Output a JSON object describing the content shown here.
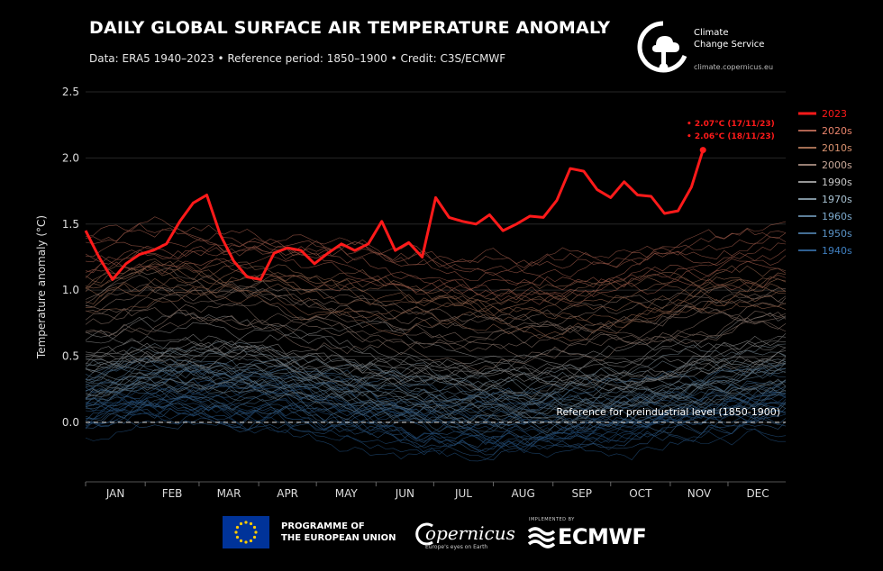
{
  "header": {
    "title": "DAILY GLOBAL SURFACE AIR TEMPERATURE ANOMALY",
    "subtitle": "Data: ERA5 1940–2023 • Reference period: 1850–1900 • Credit: C3S/ECMWF"
  },
  "logos": {
    "c3s_name": "Climate\nChange Service",
    "c3s_url": "climate.copernicus.eu",
    "eu_text": "PROGRAMME OF\nTHE EUROPEAN UNION",
    "copernicus": "opernicus",
    "copernicus_sub": "Europe's eyes on Earth",
    "ecmwf_implemented": "IMPLEMENTED BY",
    "ecmwf": "ECMWF"
  },
  "colors": {
    "year_2023": "#ff1a1a",
    "reference_line": "#cccccc"
  },
  "chart_data": {
    "type": "line",
    "ylabel": "Temperature anomaly (°C)",
    "ylim": [
      -0.45,
      2.5
    ],
    "yticks": [
      0.0,
      0.5,
      1.0,
      1.5,
      2.0,
      2.5
    ],
    "ytick_labels": [
      "0.0",
      "0.5",
      "1.0",
      "1.5",
      "2.0",
      "2.5"
    ],
    "grid": true,
    "months": [
      "JAN",
      "FEB",
      "MAR",
      "APR",
      "MAY",
      "JUN",
      "JUL",
      "AUG",
      "SEP",
      "OCT",
      "NOV",
      "DEC"
    ],
    "reference_label": "Reference for preindustrial level (1850-1900)",
    "legend_position": "right",
    "legend": [
      {
        "label": "2023",
        "color": "#ff1a1a"
      },
      {
        "label": "2020s",
        "color": "#e8836b"
      },
      {
        "label": "2010s",
        "color": "#d9926f"
      },
      {
        "label": "2000s",
        "color": "#c9a99a"
      },
      {
        "label": "1990s",
        "color": "#c7c7c7"
      },
      {
        "label": "1970s",
        "color": "#a9c3d3"
      },
      {
        "label": "1960s",
        "color": "#7ca9cc"
      },
      {
        "label": "1950s",
        "color": "#5a93c6"
      },
      {
        "label": "1940s",
        "color": "#3f7fc0"
      }
    ],
    "annotations": [
      {
        "label": "2.07°C (17/11/23)",
        "day": 321,
        "value": 2.07
      },
      {
        "label": "2.06°C (18/11/23)",
        "day": 322,
        "value": 2.06
      }
    ],
    "series_2023": {
      "name": "2023",
      "day": [
        1,
        8,
        15,
        22,
        29,
        36,
        43,
        50,
        57,
        64,
        71,
        78,
        85,
        92,
        99,
        106,
        113,
        120,
        127,
        134,
        141,
        148,
        155,
        162,
        169,
        176,
        183,
        190,
        197,
        204,
        211,
        218,
        225,
        232,
        239,
        246,
        253,
        260,
        267,
        274,
        281,
        288,
        295,
        302,
        309,
        316,
        322
      ],
      "value": [
        1.45,
        1.25,
        1.08,
        1.2,
        1.27,
        1.3,
        1.35,
        1.52,
        1.66,
        1.72,
        1.42,
        1.22,
        1.1,
        1.08,
        1.28,
        1.32,
        1.3,
        1.2,
        1.28,
        1.35,
        1.3,
        1.35,
        1.52,
        1.3,
        1.36,
        1.25,
        1.7,
        1.55,
        1.52,
        1.5,
        1.57,
        1.45,
        1.5,
        1.56,
        1.55,
        1.68,
        1.92,
        1.9,
        1.76,
        1.7,
        1.82,
        1.72,
        1.71,
        1.58,
        1.6,
        1.78,
        2.06
      ]
    },
    "series_decades": [
      {
        "name": "2020s",
        "mean": 1.2
      },
      {
        "name": "2010s",
        "mean": 0.95
      },
      {
        "name": "2000s",
        "mean": 0.75
      },
      {
        "name": "1990s",
        "mean": 0.55
      },
      {
        "name": "1970s",
        "mean": 0.32
      },
      {
        "name": "1960s",
        "mean": 0.22
      },
      {
        "name": "1950s",
        "mean": 0.18
      },
      {
        "name": "1940s",
        "mean": 0.1
      }
    ]
  }
}
